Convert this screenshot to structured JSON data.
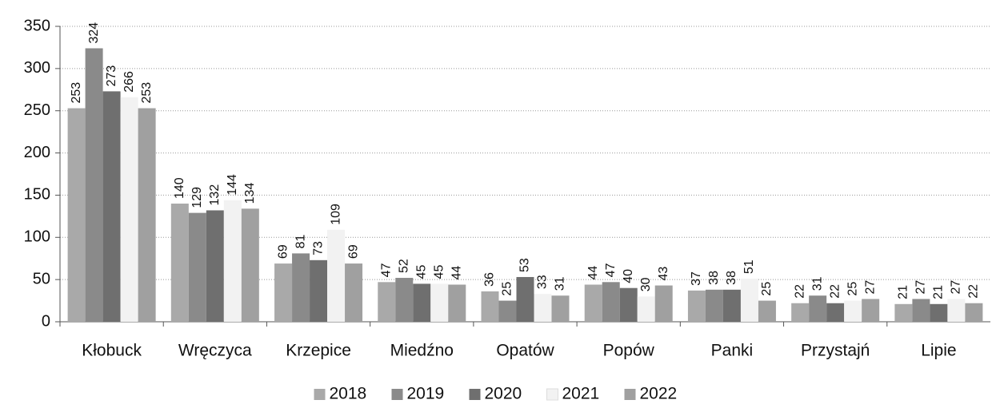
{
  "chart_data": {
    "type": "bar",
    "categories": [
      "Kłobuck",
      "Wręczyca",
      "Krzepice",
      "Miedźno",
      "Opatów",
      "Popów",
      "Panki",
      "Przystajń",
      "Lipie"
    ],
    "series": [
      {
        "name": "2018",
        "color": "#a9a9a9",
        "values": [
          253,
          140,
          69,
          47,
          36,
          44,
          37,
          22,
          21
        ]
      },
      {
        "name": "2019",
        "color": "#8a8a8a",
        "values": [
          324,
          129,
          81,
          52,
          25,
          47,
          38,
          31,
          27
        ]
      },
      {
        "name": "2020",
        "color": "#6f6f6f",
        "values": [
          273,
          132,
          73,
          45,
          53,
          40,
          38,
          22,
          21
        ]
      },
      {
        "name": "2021",
        "color": "#f2f2f2",
        "values": [
          266,
          144,
          109,
          45,
          33,
          30,
          51,
          25,
          27
        ]
      },
      {
        "name": "2022",
        "color": "#a0a0a0",
        "values": [
          253,
          134,
          69,
          44,
          31,
          43,
          25,
          27,
          22
        ]
      }
    ],
    "ylim": [
      0,
      350
    ],
    "yticks": [
      0,
      50,
      100,
      150,
      200,
      250,
      300,
      350
    ],
    "grid": true,
    "legend": "bottom"
  }
}
